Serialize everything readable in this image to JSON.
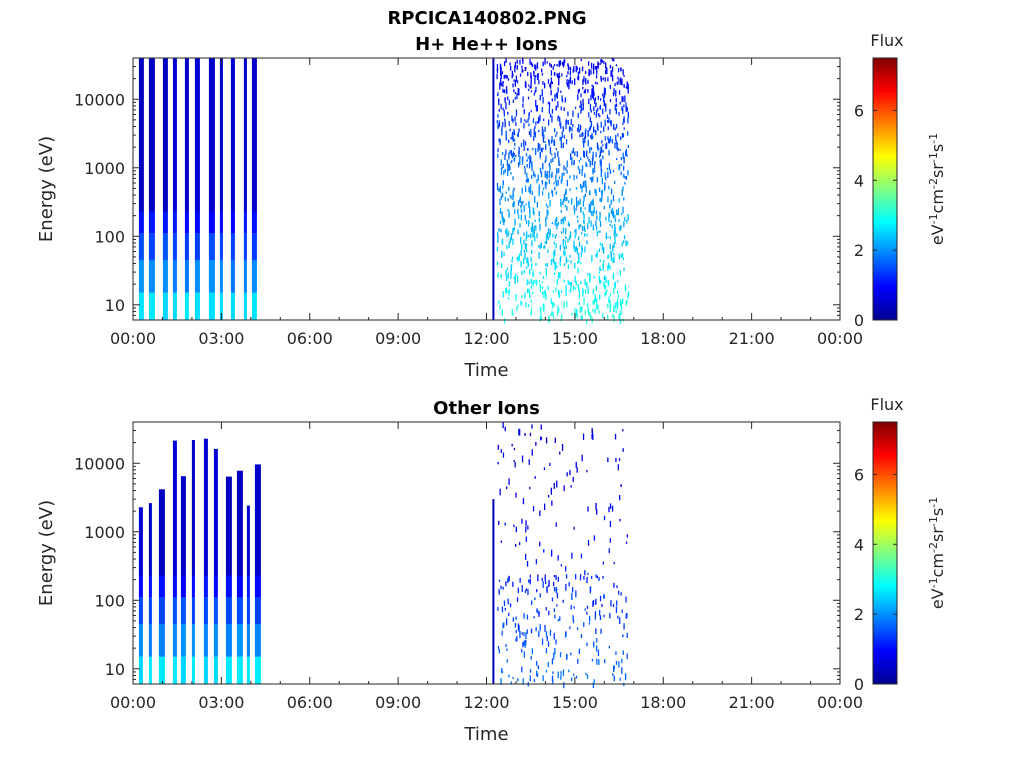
{
  "figure": {
    "title": "RPCICA140802.PNG"
  },
  "colormap": [
    "#00008f",
    "#0000ff",
    "#0080ff",
    "#00ffff",
    "#80ff80",
    "#ffff00",
    "#ff8000",
    "#ff0000",
    "#800000"
  ],
  "chart_data": [
    {
      "type": "heatmap",
      "title": "H+ He++ Ions",
      "xlabel": "Time",
      "ylabel": "Energy (eV)",
      "x_ticks": [
        "00:00",
        "03:00",
        "06:00",
        "09:00",
        "12:00",
        "15:00",
        "18:00",
        "21:00",
        "00:00"
      ],
      "x_range_hours": [
        0,
        24
      ],
      "y_scale": "log",
      "y_ticks": [
        "10",
        "100",
        "1000",
        "10000"
      ],
      "y_range": [
        6,
        40000
      ],
      "colorbar": {
        "label": "Flux",
        "unit": "eV-1cm-2sr-1s-1",
        "ticks": [
          "0",
          "2",
          "4",
          "6"
        ],
        "range": [
          0,
          7.5
        ]
      },
      "data_intervals_hours": [
        [
          0.2,
          4.3
        ],
        [
          12.2,
          16.8
        ]
      ]
    },
    {
      "type": "heatmap",
      "title": "Other Ions",
      "xlabel": "Time",
      "ylabel": "Energy (eV)",
      "x_ticks": [
        "00:00",
        "03:00",
        "06:00",
        "09:00",
        "12:00",
        "15:00",
        "18:00",
        "21:00",
        "00:00"
      ],
      "x_range_hours": [
        0,
        24
      ],
      "y_scale": "log",
      "y_ticks": [
        "10",
        "100",
        "1000",
        "10000"
      ],
      "y_range": [
        6,
        40000
      ],
      "colorbar": {
        "label": "Flux",
        "unit": "eV-1cm-2sr-1s-1",
        "ticks": [
          "0",
          "2",
          "4",
          "6"
        ],
        "range": [
          0,
          7.5
        ]
      },
      "data_intervals_hours": [
        [
          0.2,
          4.3
        ],
        [
          12.2,
          16.8
        ]
      ]
    }
  ]
}
